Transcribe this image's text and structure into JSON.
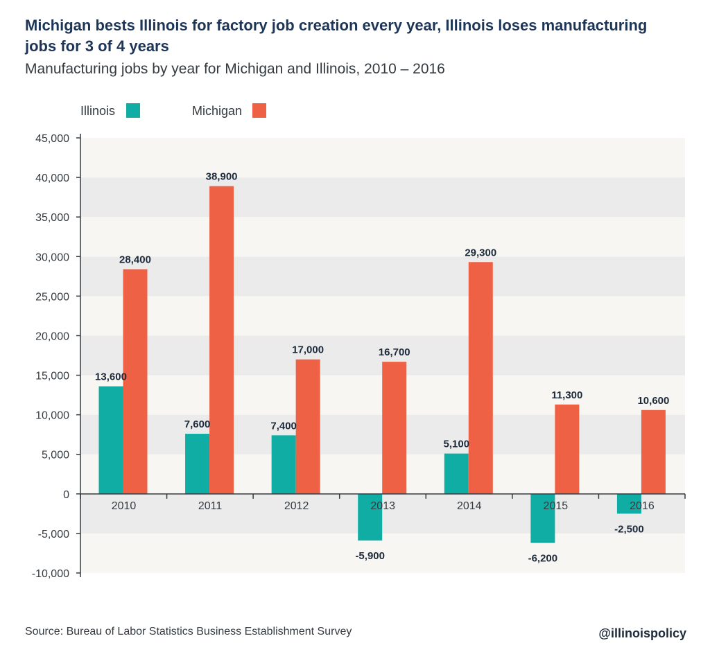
{
  "header": {
    "title": "Michigan bests Illinois for factory job creation every year, Illinois loses manufacturing jobs for 3 of 4 years",
    "subtitle": "Manufacturing jobs by year for Michigan and Illinois, 2010 – 2016"
  },
  "footer": {
    "source": "Source: Bureau of Labor Statistics Business Establishment Survey",
    "handle": "@illinoispolicy"
  },
  "colors": {
    "illinois": "#10ada5",
    "michigan": "#ef6144",
    "label": "#1d2a3a",
    "axis": "#333a40",
    "band_light": "#f7f6f2",
    "band_dark": "#ecebeb"
  },
  "chart_data": {
    "type": "bar",
    "title": "Michigan bests Illinois for factory job creation every year, Illinois loses manufacturing jobs for 3 of 4 years",
    "subtitle": "Manufacturing jobs by year for Michigan and Illinois, 2010 – 2016",
    "xlabel": "",
    "ylabel": "",
    "categories": [
      "2010",
      "2011",
      "2012",
      "2013",
      "2014",
      "2015",
      "2016"
    ],
    "series": [
      {
        "name": "Illinois",
        "values": [
          13600,
          7600,
          7400,
          -5900,
          5100,
          -6200,
          -2500
        ]
      },
      {
        "name": "Michigan",
        "values": [
          28400,
          38900,
          17000,
          16700,
          29300,
          11300,
          10600
        ]
      }
    ],
    "data_labels": {
      "Illinois": [
        "13,600",
        "7,600",
        "7,400",
        "-5,900",
        "5,100",
        "-6,200",
        "-2,500"
      ],
      "Michigan": [
        "28,400",
        "38,900",
        "17,000",
        "16,700",
        "29,300",
        "11,300",
        "10,600"
      ]
    },
    "ylim": [
      -10000,
      45000
    ],
    "yticks": [
      -10000,
      -5000,
      0,
      5000,
      10000,
      15000,
      20000,
      25000,
      30000,
      35000,
      40000,
      45000
    ],
    "ytick_labels": [
      "-10,000",
      "-5,000",
      "0",
      "5,000",
      "10,000",
      "15,000",
      "20,000",
      "25,000",
      "30,000",
      "35,000",
      "40,000",
      "45,000"
    ],
    "legend": {
      "position": "top-left",
      "entries": [
        "Illinois",
        "Michigan"
      ]
    },
    "grid": "alternating horizontal bands"
  }
}
